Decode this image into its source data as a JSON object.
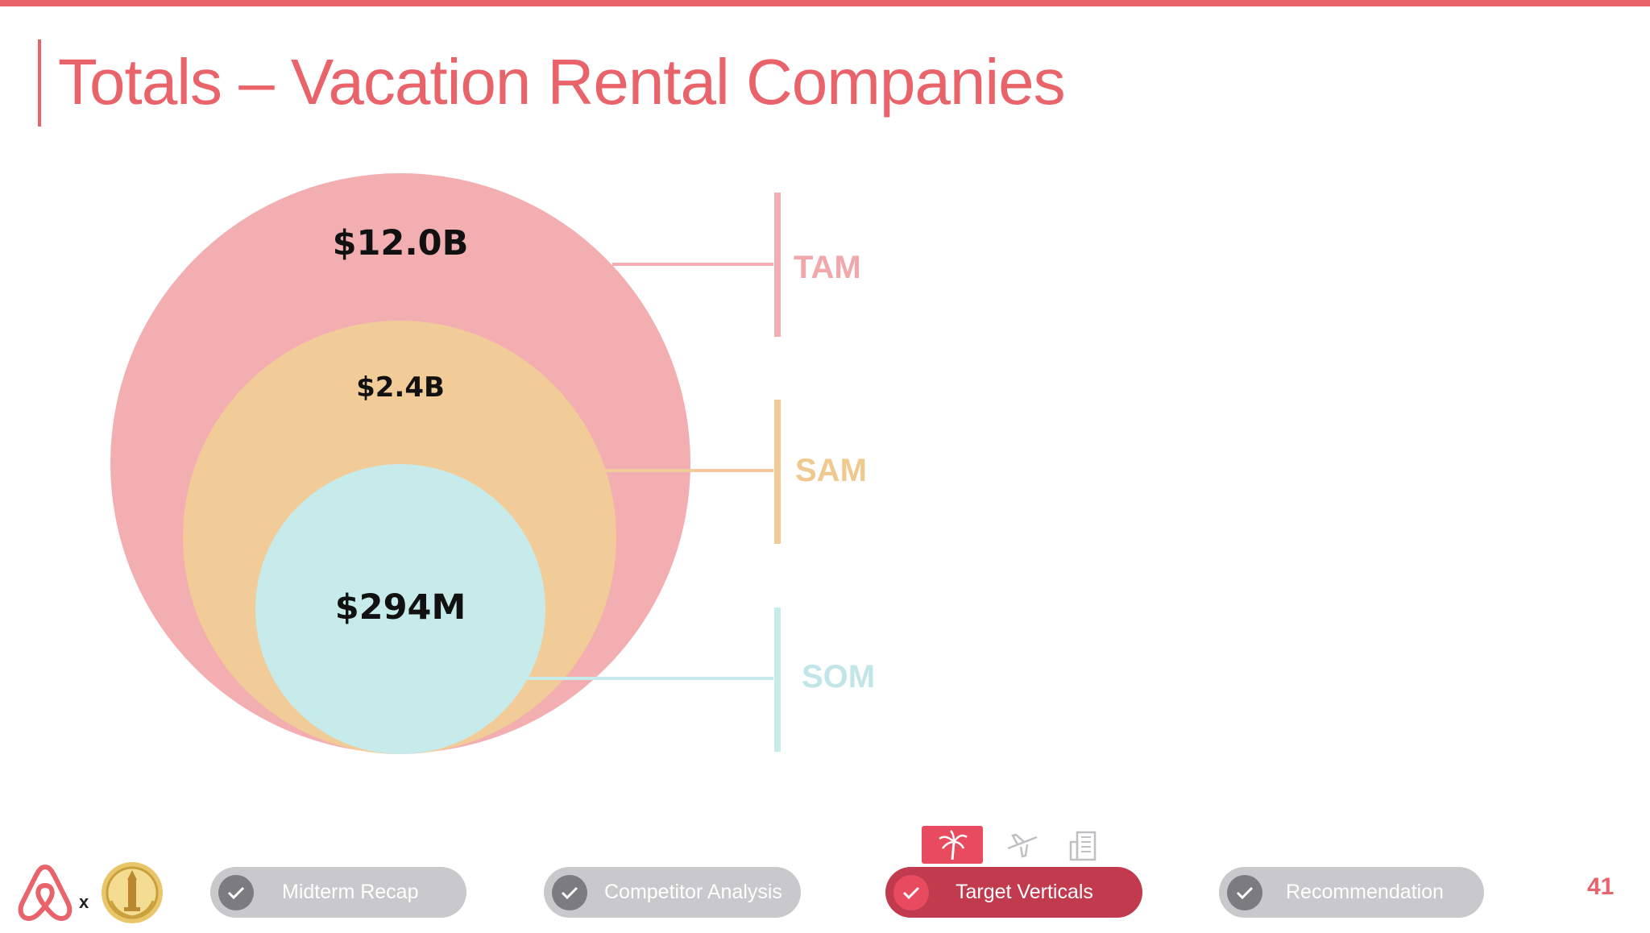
{
  "slide": {
    "title": "Totals – Vacation Rental Companies",
    "page_number": "41"
  },
  "diagram": {
    "circles": [
      {
        "value": "$12.0B",
        "tag": "TAM",
        "color": "#f3aeb1",
        "tag_color": "#f2a7ab"
      },
      {
        "value": "$2.4B",
        "tag": "SAM",
        "color": "#f2cc98",
        "tag_color": "#f0c98f"
      },
      {
        "value": "$294M",
        "tag": "SOM",
        "color": "#c7eaea",
        "tag_color": "#c2e6e7"
      }
    ]
  },
  "footer": {
    "separator": "x",
    "nav": [
      {
        "label": "Midterm Recap",
        "state": "done"
      },
      {
        "label": "Competitor Analysis",
        "state": "done"
      },
      {
        "label": "Target Verticals",
        "state": "active"
      },
      {
        "label": "Recommendation",
        "state": "done"
      }
    ],
    "vertical_icons": [
      "palm-tree-icon",
      "airplane-icon",
      "building-icon"
    ]
  },
  "colors": {
    "accent": "#e8636a",
    "active_pill": "#c23a4d",
    "inactive_pill": "#c9c9cc",
    "check_gray": "#7c7c80"
  }
}
